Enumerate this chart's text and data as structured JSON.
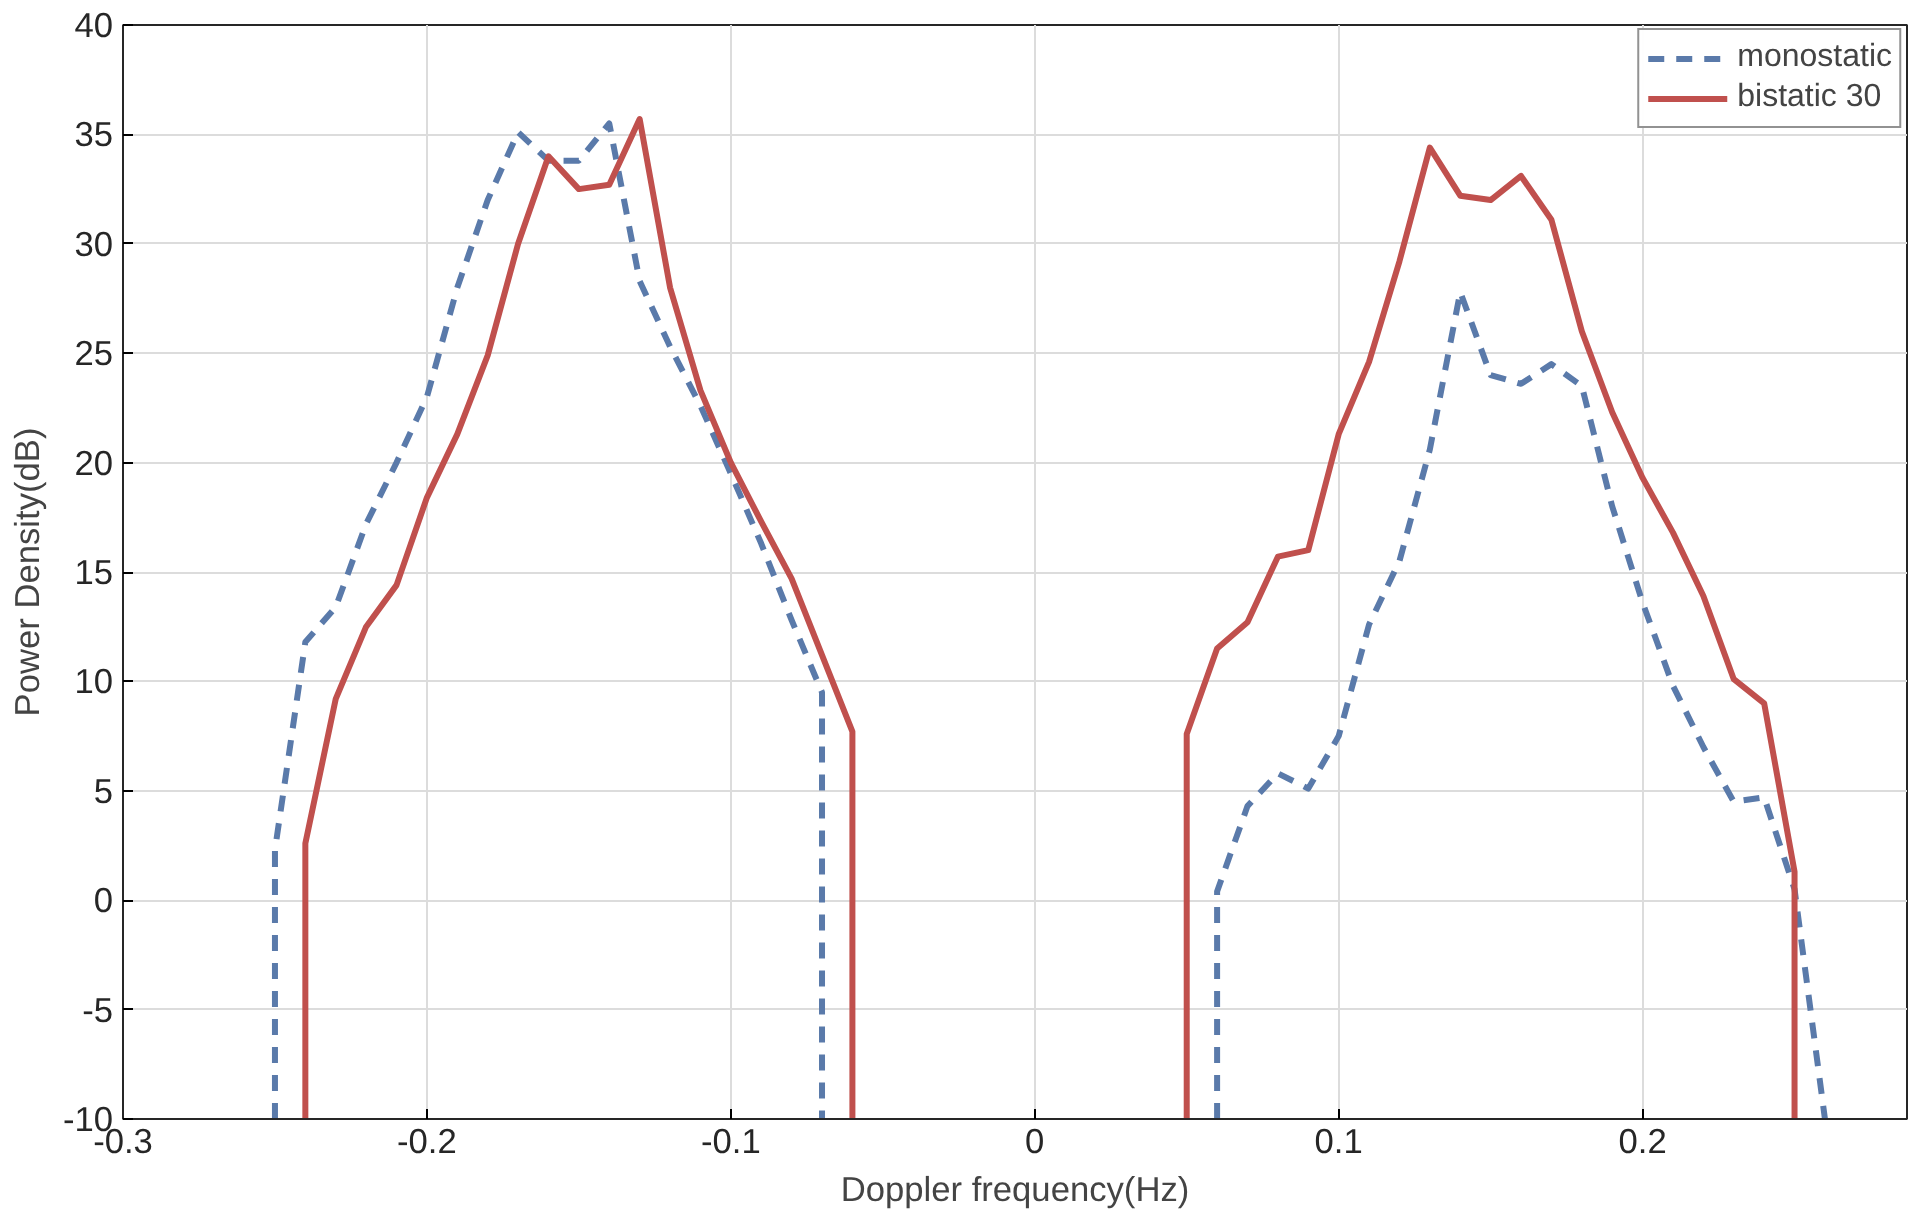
{
  "chart_data": {
    "type": "line",
    "xlabel": "Doppler frequency(Hz)",
    "ylabel": "Power Density(dB)",
    "xlim": [
      -0.3,
      0.287
    ],
    "xticks": [
      -0.3,
      -0.2,
      -0.1,
      0,
      0.1,
      0.2
    ],
    "ylim": [
      -10,
      40
    ],
    "yticks": [
      -10,
      -5,
      0,
      5,
      10,
      15,
      20,
      25,
      30,
      35,
      40
    ],
    "grid": true,
    "legend": "top right",
    "series": [
      {
        "name": "monostatic",
        "color": "#5a7aaa",
        "line_style": "dashed",
        "x": [
          -0.25,
          -0.25,
          -0.24,
          -0.23,
          -0.22,
          -0.21,
          -0.2,
          -0.19,
          -0.18,
          -0.17,
          -0.16,
          -0.15,
          -0.14,
          -0.13,
          -0.12,
          -0.11,
          -0.1,
          -0.09,
          -0.08,
          -0.07,
          -0.07,
          0,
          0.06,
          0.06,
          0.07,
          0.08,
          0.09,
          0.1,
          0.11,
          0.12,
          0.13,
          0.14,
          0.15,
          0.16,
          0.17,
          0.18,
          0.19,
          0.2,
          0.21,
          0.22,
          0.23,
          0.24,
          0.25,
          0.26
        ],
        "values": [
          -10,
          2.3,
          11.8,
          13.4,
          17.2,
          20,
          23,
          28,
          32,
          35.1,
          33.8,
          33.8,
          35.5,
          28.3,
          25.3,
          22.6,
          19.5,
          16.3,
          12.8,
          9.5,
          -10,
          null,
          -10,
          0.4,
          4.3,
          5.8,
          5.1,
          7.5,
          12.6,
          15.5,
          20.6,
          27.8,
          24,
          23.6,
          24.5,
          23.5,
          18,
          13.6,
          9.8,
          7,
          4.5,
          4.7,
          0.5,
          -10
        ]
      },
      {
        "name": "bistatic 30",
        "color": "#c0504d",
        "line_style": "solid",
        "x": [
          -0.24,
          -0.24,
          -0.23,
          -0.22,
          -0.21,
          -0.2,
          -0.19,
          -0.18,
          -0.17,
          -0.16,
          -0.15,
          -0.14,
          -0.13,
          -0.12,
          -0.11,
          -0.1,
          -0.09,
          -0.08,
          -0.07,
          -0.06,
          -0.06,
          0,
          0.05,
          0.05,
          0.06,
          0.07,
          0.08,
          0.09,
          0.1,
          0.11,
          0.12,
          0.13,
          0.14,
          0.15,
          0.16,
          0.17,
          0.18,
          0.19,
          0.2,
          0.21,
          0.22,
          0.23,
          0.24,
          0.25,
          0.25
        ],
        "values": [
          -10,
          2.6,
          9.2,
          12.5,
          14.4,
          18.4,
          21.3,
          24.9,
          30,
          34,
          32.5,
          32.7,
          35.7,
          28,
          23.3,
          20,
          17.3,
          14.7,
          11.2,
          7.7,
          -10,
          null,
          -10,
          7.6,
          11.5,
          12.7,
          15.7,
          16,
          21.3,
          24.6,
          29.2,
          34.4,
          32.2,
          32,
          33.1,
          31.1,
          26,
          22.3,
          19.3,
          16.8,
          13.9,
          10.1,
          9,
          1.3,
          -10
        ]
      }
    ]
  }
}
